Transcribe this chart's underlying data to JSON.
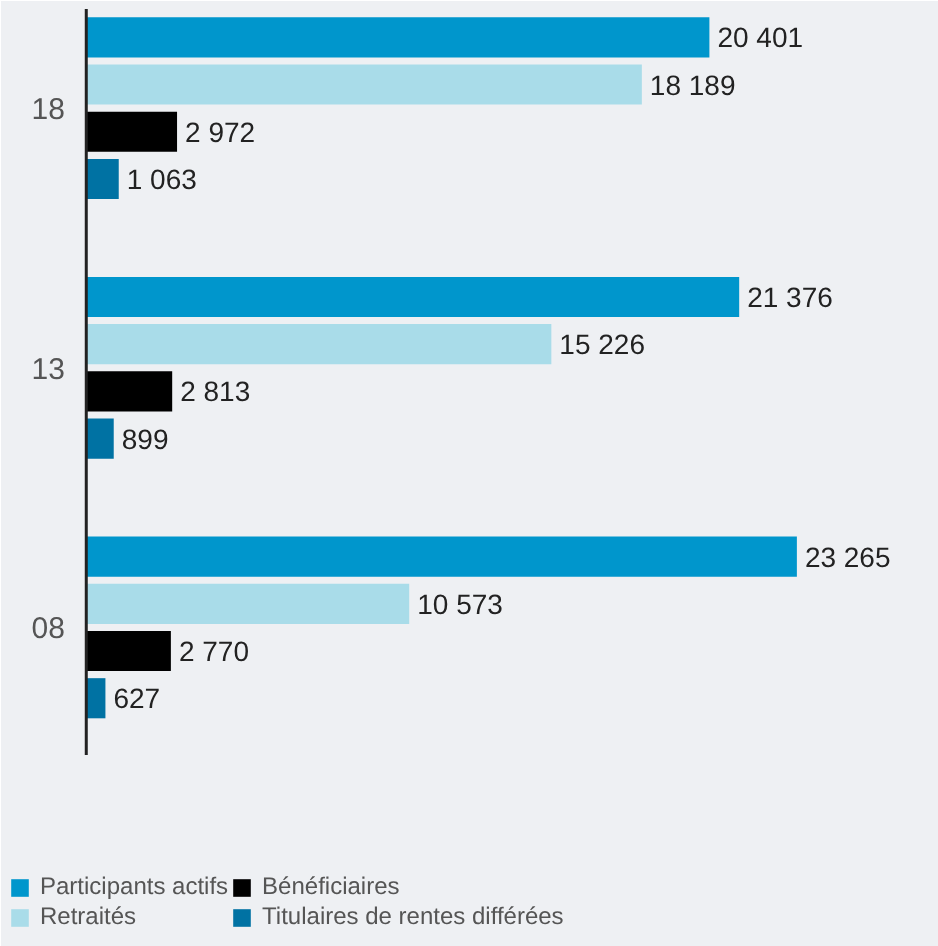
{
  "chart_data": {
    "type": "bar",
    "orientation": "horizontal",
    "categories": [
      "18",
      "13",
      "08"
    ],
    "legend": "bottom",
    "series": [
      {
        "name": "Participants actifs",
        "color": "#0096cc",
        "values": [
          20401,
          21376,
          23265
        ],
        "value_labels": [
          "20 401",
          "21 376",
          "23 265"
        ]
      },
      {
        "name": "Retraités",
        "color": "#a9dce9",
        "values": [
          18189,
          15226,
          10573
        ],
        "value_labels": [
          "18 189",
          "15 226",
          "10 573"
        ]
      },
      {
        "name": "Bénéficiaires",
        "color": "#000000",
        "values": [
          2972,
          2813,
          2770
        ],
        "value_labels": [
          "2 972",
          "2 813",
          "2 770"
        ]
      },
      {
        "name": "Titulaires de rentes différées",
        "color": "#0072a3",
        "values": [
          1063,
          899,
          627
        ],
        "value_labels": [
          "1 063",
          "899",
          "627"
        ]
      }
    ]
  }
}
